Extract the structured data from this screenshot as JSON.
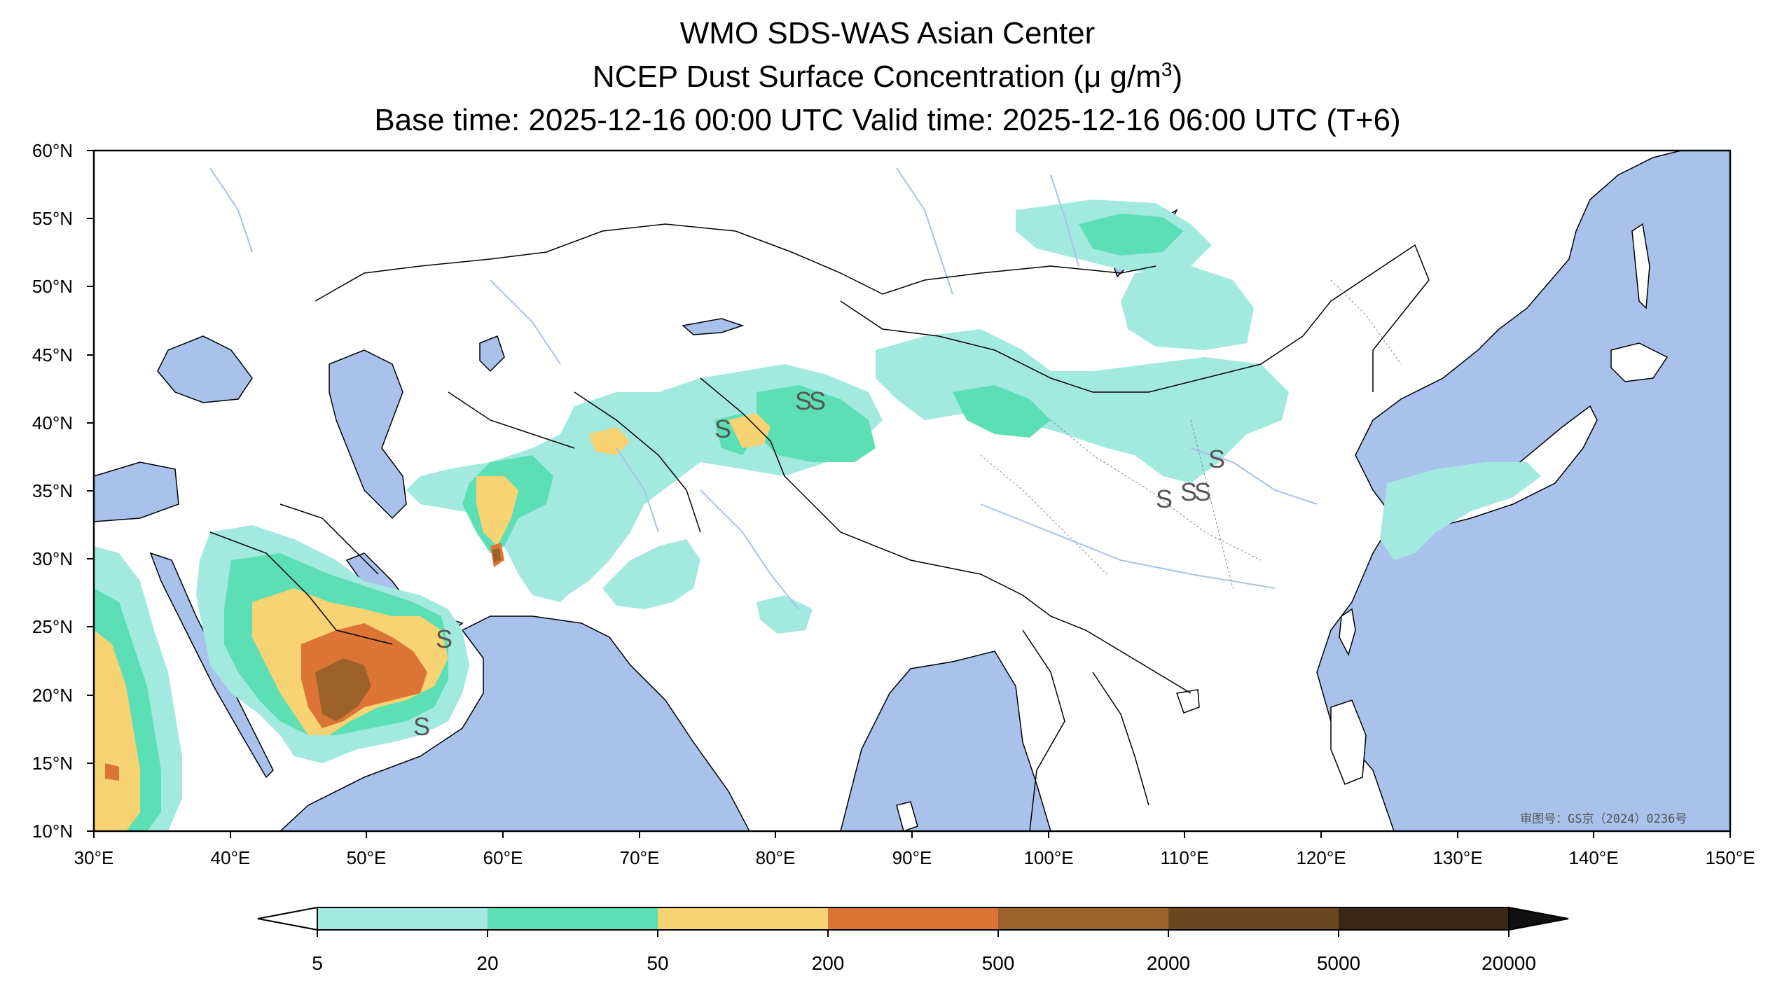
{
  "title": {
    "line1": "WMO SDS-WAS Asian Center",
    "line2_prefix": "NCEP Dust Surface Concentration (μ g/m",
    "line2_sup": "3",
    "line2_suffix": ")",
    "line3": "Base time: 2025-12-16 00:00 UTC Valid time: 2025-12-16 06:00 UTC (T+6)"
  },
  "map": {
    "lat_labels": [
      "60°N",
      "55°N",
      "50°N",
      "45°N",
      "40°N",
      "35°N",
      "30°N",
      "25°N",
      "20°N",
      "15°N",
      "10°N"
    ],
    "lon_labels": [
      "30°E",
      "40°E",
      "50°E",
      "60°E",
      "70°E",
      "80°E",
      "90°E",
      "100°E",
      "110°E",
      "120°E",
      "130°E",
      "140°E",
      "150°E"
    ],
    "extent_lon": [
      30,
      150
    ],
    "extent_lat": [
      10,
      60
    ],
    "approval_text": "审图号：GS京（2024）0236号",
    "sandstorm_symbol": "S",
    "colors": {
      "ocean": "#a8c2ec",
      "land": "#ffffff",
      "border": "#000000",
      "river": "#a8c2ec"
    }
  },
  "colorbar": {
    "levels": [
      "5",
      "20",
      "50",
      "200",
      "500",
      "2000",
      "5000",
      "20000"
    ],
    "colors": [
      "#a2e9df",
      "#5ddfb6",
      "#f8d373",
      "#dc7435",
      "#9d6229",
      "#6c4822",
      "#3a2716"
    ],
    "under_color": "#ffffff",
    "over_color": "#111111"
  }
}
